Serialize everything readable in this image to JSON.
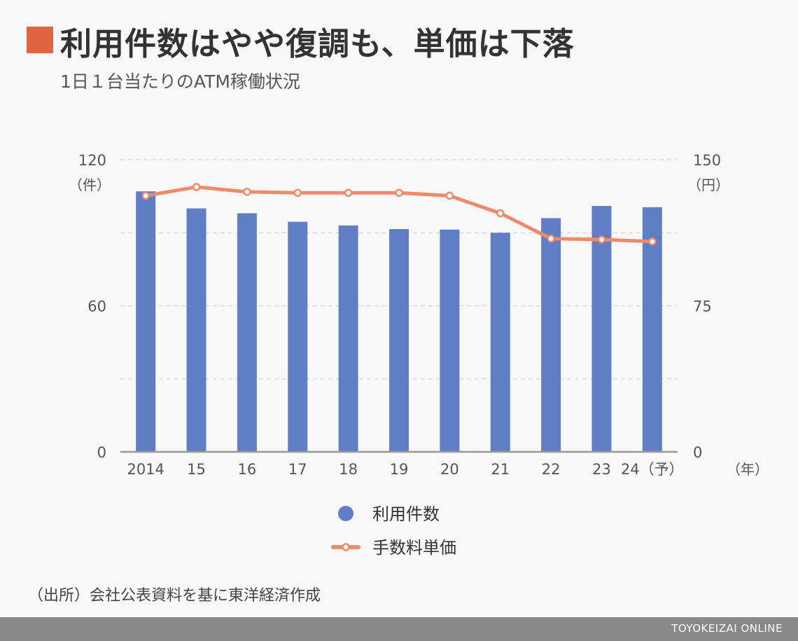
{
  "header": {
    "title": "利用件数はやや復調も、単価は下落",
    "subtitle": "1日１台当たりのATM稼働状況"
  },
  "colors": {
    "title_marker": "#e0643f",
    "bar": "#5f7ec4",
    "line": "#ef8a6a",
    "footer": "#888888"
  },
  "chart_data": {
    "type": "bar",
    "categories": [
      "2014",
      "15",
      "16",
      "17",
      "18",
      "19",
      "20",
      "21",
      "22",
      "23",
      "24（予）"
    ],
    "series": [
      {
        "name": "利用件数",
        "type": "bar",
        "axis": "left",
        "values": [
          107,
          100,
          98,
          94.5,
          93,
          91.5,
          91.3,
          90,
          96,
          101,
          100.5
        ]
      },
      {
        "name": "手数料単価",
        "type": "line",
        "axis": "right",
        "values": [
          131.5,
          136,
          133.5,
          133,
          133,
          133,
          131.5,
          122.5,
          109.5,
          109,
          108
        ]
      }
    ],
    "y_left": {
      "ticks": [
        "0",
        "60",
        "120"
      ],
      "unit": "（件）",
      "ylim": [
        0,
        120
      ]
    },
    "y_right": {
      "ticks": [
        "0",
        "75",
        "150"
      ],
      "unit": "（円）",
      "ylim": [
        0,
        150
      ]
    },
    "x_unit": "（年）",
    "gridlines": true,
    "legend": {
      "position": "bottom-center"
    }
  },
  "source": "（出所）会社公表資料を基に東洋経済作成",
  "footer": {
    "brand": "TOYOKEIZAI ONLINE"
  }
}
